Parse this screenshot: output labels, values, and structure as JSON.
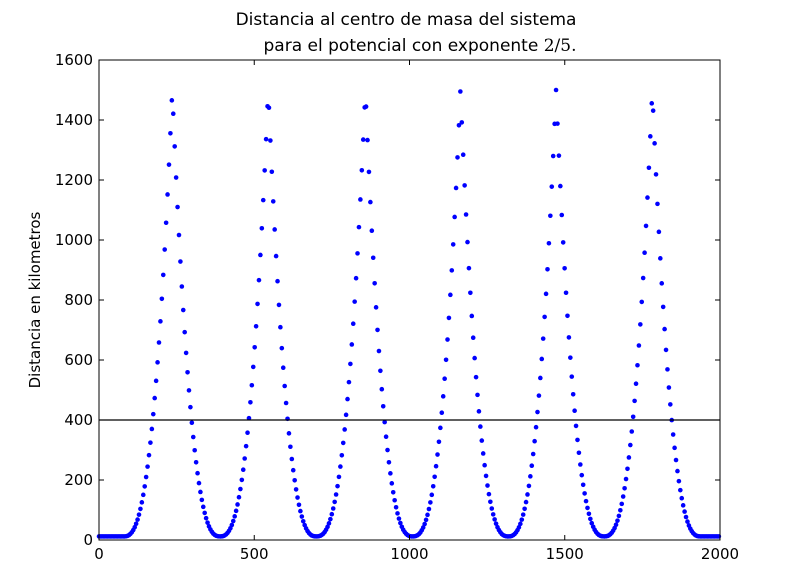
{
  "chart_data": {
    "type": "scatter",
    "title_line1": "Distancia al centro de masa del sistema",
    "title_line2_text": "para el potencial con exponente ",
    "title_line2_math": "2/5.",
    "xlabel": "",
    "ylabel": "Distancia en kilometros",
    "xlim": [
      0,
      2000
    ],
    "ylim": [
      0,
      1600
    ],
    "xticks": [
      "0",
      "500",
      "1000",
      "1500",
      "2000"
    ],
    "xtick_values": [
      0,
      500,
      1000,
      1500,
      2000
    ],
    "yticks": [
      "0",
      "200",
      "400",
      "600",
      "800",
      "1000",
      "1200",
      "1400",
      "1600"
    ],
    "ytick_values": [
      0,
      200,
      400,
      600,
      800,
      1000,
      1200,
      1400,
      1600
    ],
    "reference_line_y": 400,
    "grid": false,
    "legend": "none",
    "point_color": "#0000ff",
    "peak_x": [
      236,
      545,
      858,
      1164,
      1472,
      1782
    ],
    "peak_y": 1500,
    "min_x": [
      80,
      390,
      700,
      1010,
      1318,
      1627,
      1937
    ],
    "min_y": 12,
    "sample_step": 4.6
  }
}
